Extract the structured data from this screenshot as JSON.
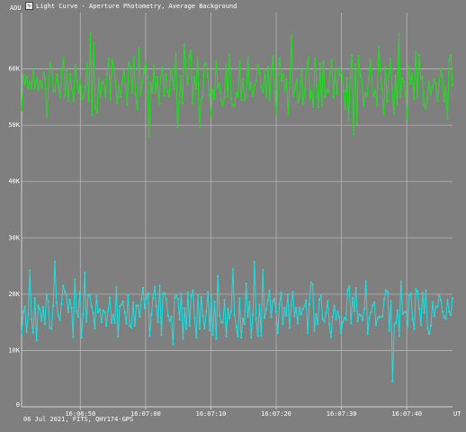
{
  "window": {
    "title": "Light Curve - Aperture Photometry, Average Background",
    "icon": "light-curve-app-icon"
  },
  "footer": "06 Jul 2021, FITS, QHY174-GPS",
  "chart_data": {
    "type": "line",
    "title": "Light Curve - Aperture Photometry, Average Background",
    "ylabel": "ADU",
    "xlabel": "UT",
    "ylim": [
      0,
      70000
    ],
    "xlim": [
      "16:06:41",
      "16:07:47"
    ],
    "grid": true,
    "y_ticks": [
      "0",
      "10K",
      "20K",
      "30K",
      "40K",
      "50K",
      "60K"
    ],
    "x_ticks": [
      "16:06:50",
      "16:07:00",
      "16:07:10",
      "16:07:20",
      "16:07:30",
      "16:07:40"
    ],
    "background_color": "#7f7f7f",
    "series": [
      {
        "color": "#22dd22",
        "values": [
          52600,
          59000,
          57200,
          58600,
          56500,
          57700,
          56600,
          59800,
          56600,
          58400,
          56300,
          57900,
          56700,
          59400,
          58400,
          51600,
          56400,
          61100,
          60200,
          56000,
          56100,
          59100,
          56900,
          55000,
          59800,
          62000,
          55200,
          59800,
          54300,
          59100,
          56500,
          54400,
          60600,
          57800,
          55700,
          58200,
          54600,
          55000,
          56700,
          60900,
          54300,
          66300,
          51800,
          64600,
          53100,
          52300,
          58200,
          55000,
          57600,
          57900,
          54900,
          59100,
          61800,
          54600,
          61600,
          60300,
          57600,
          53900,
          57000,
          55000,
          57600,
          59800,
          57000,
          53700,
          61200,
          60300,
          55800,
          62100,
          55500,
          52800,
          63700,
          55400,
          57600,
          59400,
          61300,
          58600,
          48000,
          57500,
          55800,
          60500,
          55800,
          58500,
          53800,
          58600,
          60300,
          55300,
          59000,
          56000,
          55100,
          60000,
          58100,
          56500,
          62700,
          49600,
          54200,
          58800,
          53900,
          64300,
          60100,
          57300,
          62200,
          63300,
          53800,
          58600,
          56400,
          62000,
          49600,
          54300,
          55000,
          60700,
          61000,
          58700,
          55400,
          51700,
          56300,
          54700,
          61300,
          56700,
          57300,
          54400,
          53500,
          55000,
          60700,
          55100,
          62500,
          54700,
          53500,
          53500,
          55700,
          55100,
          61300,
          54500,
          58200,
          54500,
          55200,
          62100,
          56400,
          57500,
          55200,
          57000,
          57900,
          60700,
          59300,
          56700,
          55900,
          59600,
          55000,
          60300,
          54600,
          59400,
          62200,
          55700,
          52000,
          59000,
          61900,
          57900,
          59100,
          56200,
          58200,
          51900,
          57500,
          65900,
          55200,
          56600,
          58100,
          54000,
          55400,
          59700,
          53800,
          56300,
          60000,
          62000,
          54700,
          55900,
          53300,
          61900,
          57000,
          53200,
          60900,
          53500,
          61300,
          55000,
          56300,
          55900,
          59500,
          61600,
          54900,
          59600,
          55600,
          60200,
          58900,
          59400,
          56100,
          52900,
          58400,
          51000,
          58300,
          62500,
          48400,
          60800,
          50300,
          62300,
          58800,
          57700,
          53500,
          55700,
          55300,
          58300,
          61500,
          57900,
          55100,
          56200,
          53500,
          64000,
          59700,
          56400,
          51900,
          60300,
          54200,
          59000,
          61700,
          56500,
          52100,
          58800,
          53700,
          66200,
          55100,
          58300,
          57700,
          55600,
          51200,
          60500,
          57400,
          59200,
          54700,
          62900,
          54900,
          62500,
          58200,
          58700,
          53600,
          53100,
          54800,
          57700,
          55500,
          56800,
          58200,
          57400,
          54300,
          57400,
          60000,
          58700,
          54200,
          56600,
          51100,
          61700,
          62400,
          57000
        ]
      },
      {
        "color": "#22dddd",
        "values": [
          12800,
          16900,
          17800,
          13300,
          16400,
          24200,
          15500,
          13200,
          19300,
          11800,
          18000,
          17400,
          15300,
          17700,
          14700,
          20000,
          18600,
          14000,
          13800,
          17900,
          25800,
          18500,
          16200,
          15400,
          18300,
          21500,
          20400,
          19800,
          16800,
          19000,
          17600,
          12400,
          22600,
          17000,
          16000,
          20400,
          12300,
          16400,
          23800,
          15100,
          19900,
          19800,
          17800,
          16700,
          13900,
          19600,
          16800,
          17300,
          15000,
          17100,
          16800,
          14400,
          17000,
          19400,
          14900,
          16300,
          14900,
          21200,
          12500,
          17900,
          18100,
          18700,
          16700,
          14800,
          19900,
          14400,
          14100,
          18500,
          14400,
          18000,
          18000,
          16000,
          19100,
          21100,
          17500,
          19300,
          20200,
          12600,
          16400,
          19300,
          21300,
          17900,
          15000,
          21500,
          12800,
          20100,
          20200,
          19000,
          16200,
          15200,
          16000,
          11100,
          19400,
          19700,
          19100,
          15500,
          20100,
          12100,
          17500,
          13800,
          20300,
          14400,
          19800,
          20700,
          15700,
          12300,
          19900,
          13900,
          19500,
          16100,
          13900,
          16900,
          20400,
          13600,
          19700,
          12800,
          18700,
          12100,
          23200,
          16200,
          15000,
          15000,
          19000,
          12500,
          17400,
          15700,
          17000,
          24400,
          16300,
          14200,
          12500,
          19300,
          12300,
          15700,
          14700,
          21900,
          16000,
          18600,
          12300,
          16400,
          25700,
          15600,
          12600,
          18100,
          12600,
          24300,
          15800,
          17300,
          18900,
          20700,
          15900,
          18800,
          19200,
          16900,
          13100,
          18200,
          20300,
          14700,
          17600,
          16200,
          20000,
          14000,
          18000,
          20400,
          16100,
          17600,
          14800,
          17600,
          16400,
          17400,
          17800,
          18900,
          13100,
          18200,
          22100,
          21700,
          13500,
          16400,
          14700,
          19000,
          19800,
          15600,
          15100,
          16700,
          18800,
          14700,
          12400,
          16000,
          18000,
          15500,
          16900,
          15900,
          13100,
          15000,
          15800,
          15400,
          20800,
          21400,
          14800,
          19400,
          17000,
          21100,
          15200,
          16400,
          16200,
          15400,
          17300,
          22300,
          12900,
          15800,
          16800,
          18000,
          18500,
          14500,
          15700,
          16000,
          15900,
          16100,
          19200,
          20700,
          20400,
          13500,
          18800,
          4500,
          14600,
          14900,
          17100,
          12600,
          22300,
          16500,
          16800,
          16900,
          14300,
          19800,
          20200,
          15600,
          13800,
          20900,
          20400,
          17400,
          14500,
          20200,
          16700,
          20700,
          13900,
          13000,
          14400,
          18600,
          16100,
          17700,
          17800,
          19800,
          18900,
          16900,
          15900,
          15600,
          19000,
          16900,
          16300,
          19300
        ]
      }
    ]
  }
}
